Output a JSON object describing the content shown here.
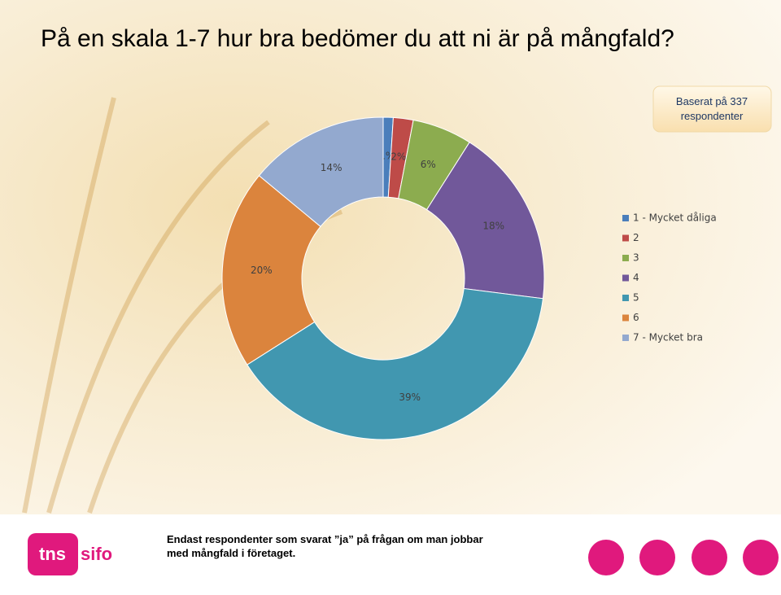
{
  "chart_data": {
    "type": "pie",
    "donut": true,
    "title": "På en skala 1-7 hur bra bedömer du att ni är på mångfald?",
    "categories": [
      "1 - Mycket dåliga",
      "2",
      "3",
      "4",
      "5",
      "6",
      "7 - Mycket bra"
    ],
    "values": [
      1,
      2,
      6,
      18,
      39,
      20,
      14
    ],
    "value_labels": [
      "1%",
      "2%",
      "6%",
      "18%",
      "39%",
      "20%",
      "14%"
    ],
    "colors": [
      "#4a7ebb",
      "#be4b48",
      "#8cac4f",
      "#71589a",
      "#4197b0",
      "#db843d",
      "#93a9cf"
    ],
    "legend": "right"
  },
  "callout": [
    "Baserat på 337",
    "respondenter"
  ],
  "note": [
    "Endast respondenter som svarat ”ja” på frågan om man jobbar",
    "med mångfald i företaget."
  ],
  "logo": [
    "tns",
    "sifo"
  ]
}
